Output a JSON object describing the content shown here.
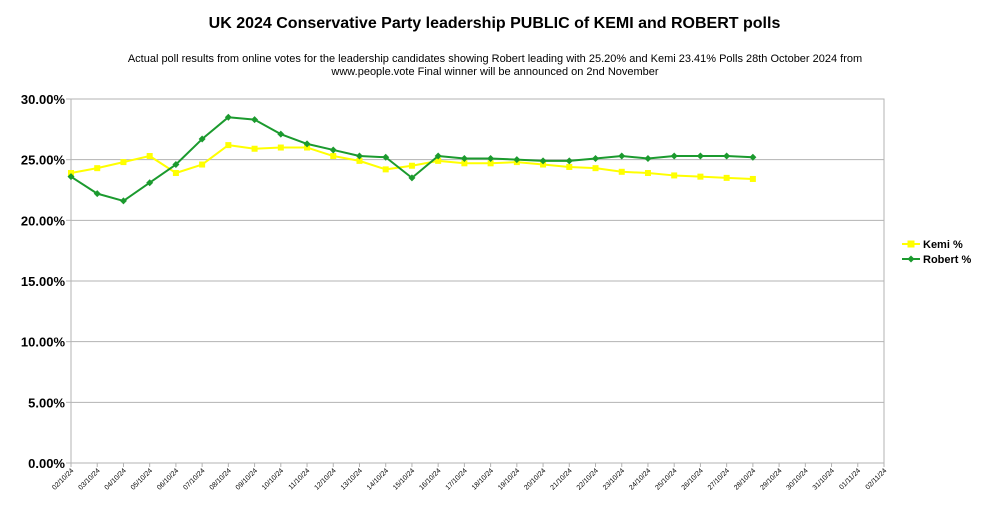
{
  "chart_data": {
    "type": "line",
    "title": "UK 2024 Conservative Party leadership PUBLIC of KEMI and ROBERT polls",
    "subtitle": "Actual poll results from online votes for the leadership candidates showing Robert leading with 25.20% and Kemi 23.41% Polls 28th October 2024 from www.people.vote Final winner will be announced on 2nd November",
    "xlabel": "",
    "ylabel": "",
    "ylim": [
      0,
      30
    ],
    "yticks": [
      "0.00%",
      "5.00%",
      "10.00%",
      "15.00%",
      "20.00%",
      "25.00%",
      "30.00%"
    ],
    "grid": true,
    "legend_position": "right",
    "categories": [
      "02/10/24",
      "03/10/24",
      "04/10/24",
      "05/10/24",
      "06/10/24",
      "07/10/24",
      "08/10/24",
      "09/10/24",
      "10/10/24",
      "11/10/24",
      "12/10/24",
      "13/10/24",
      "14/10/24",
      "15/10/24",
      "16/10/24",
      "17/10/24",
      "18/10/24",
      "19/10/24",
      "20/10/24",
      "21/10/24",
      "22/10/24",
      "23/10/24",
      "24/10/24",
      "25/10/24",
      "26/10/24",
      "27/10/24",
      "28/10/24",
      "29/10/24",
      "30/10/24",
      "31/10/24",
      "01/11/24",
      "02/11/24"
    ],
    "series": [
      {
        "name": "Kemi %",
        "color": "#ffff00",
        "marker": "square",
        "values": [
          23.9,
          24.3,
          24.8,
          25.3,
          23.9,
          24.6,
          26.2,
          25.9,
          26.0,
          26.0,
          25.3,
          24.9,
          24.2,
          24.5,
          24.9,
          24.7,
          24.7,
          24.8,
          24.6,
          24.4,
          24.3,
          24.0,
          23.9,
          23.7,
          23.6,
          23.5,
          23.41,
          null,
          null,
          null,
          null,
          null
        ]
      },
      {
        "name": "Robert %",
        "color": "#1b9a2e",
        "marker": "diamond",
        "values": [
          23.6,
          22.2,
          21.6,
          23.1,
          24.6,
          26.7,
          28.5,
          28.3,
          27.1,
          26.3,
          25.8,
          25.3,
          25.2,
          23.5,
          25.3,
          25.1,
          25.1,
          25.0,
          24.9,
          24.9,
          25.1,
          25.3,
          25.1,
          25.3,
          25.3,
          25.3,
          25.2,
          null,
          null,
          null,
          null,
          null
        ]
      }
    ]
  }
}
